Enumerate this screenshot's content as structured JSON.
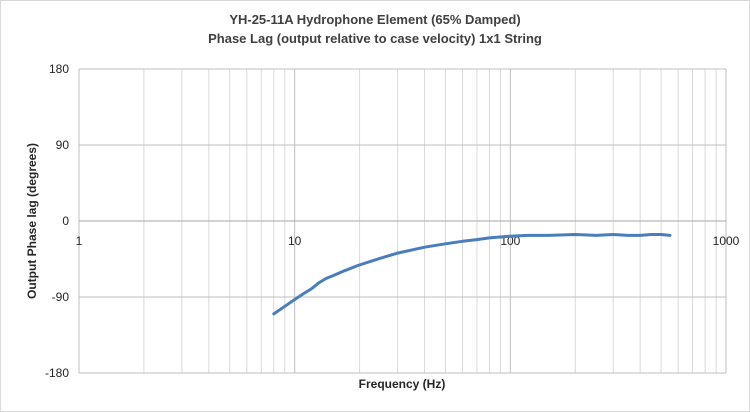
{
  "chart_data": {
    "type": "line",
    "title": "YH-25-11A Hydrophone Element (65% Damped)",
    "subtitle": "Phase Lag (output relative to case velocity) 1x1 String",
    "xlabel": "Frequency (Hz)",
    "ylabel": "Output Phase lag (degrees)",
    "xscale": "log",
    "xlim": [
      1,
      1000
    ],
    "ylim": [
      -180,
      180
    ],
    "x_ticks": [
      "1",
      "10",
      "100",
      "1000"
    ],
    "y_ticks": [
      "180",
      "90",
      "0",
      "-90",
      "-180"
    ],
    "grid": true,
    "legend": "none",
    "series_color": "#4a7ebb",
    "series": [
      {
        "x": [
          8,
          9,
          10,
          11,
          12,
          13,
          14,
          15,
          17,
          20,
          25,
          30,
          40,
          50,
          60,
          70,
          80,
          100,
          120,
          150,
          200,
          250,
          300,
          350,
          400,
          450,
          500,
          550
        ],
        "y": [
          -110,
          -101,
          -93,
          -86,
          -80,
          -73,
          -68,
          -65,
          -59,
          -52,
          -44,
          -38,
          -31,
          -27,
          -24,
          -22,
          -20,
          -18,
          -17,
          -17,
          -16,
          -17,
          -16,
          -17,
          -17,
          -16,
          -16,
          -17
        ]
      }
    ]
  }
}
